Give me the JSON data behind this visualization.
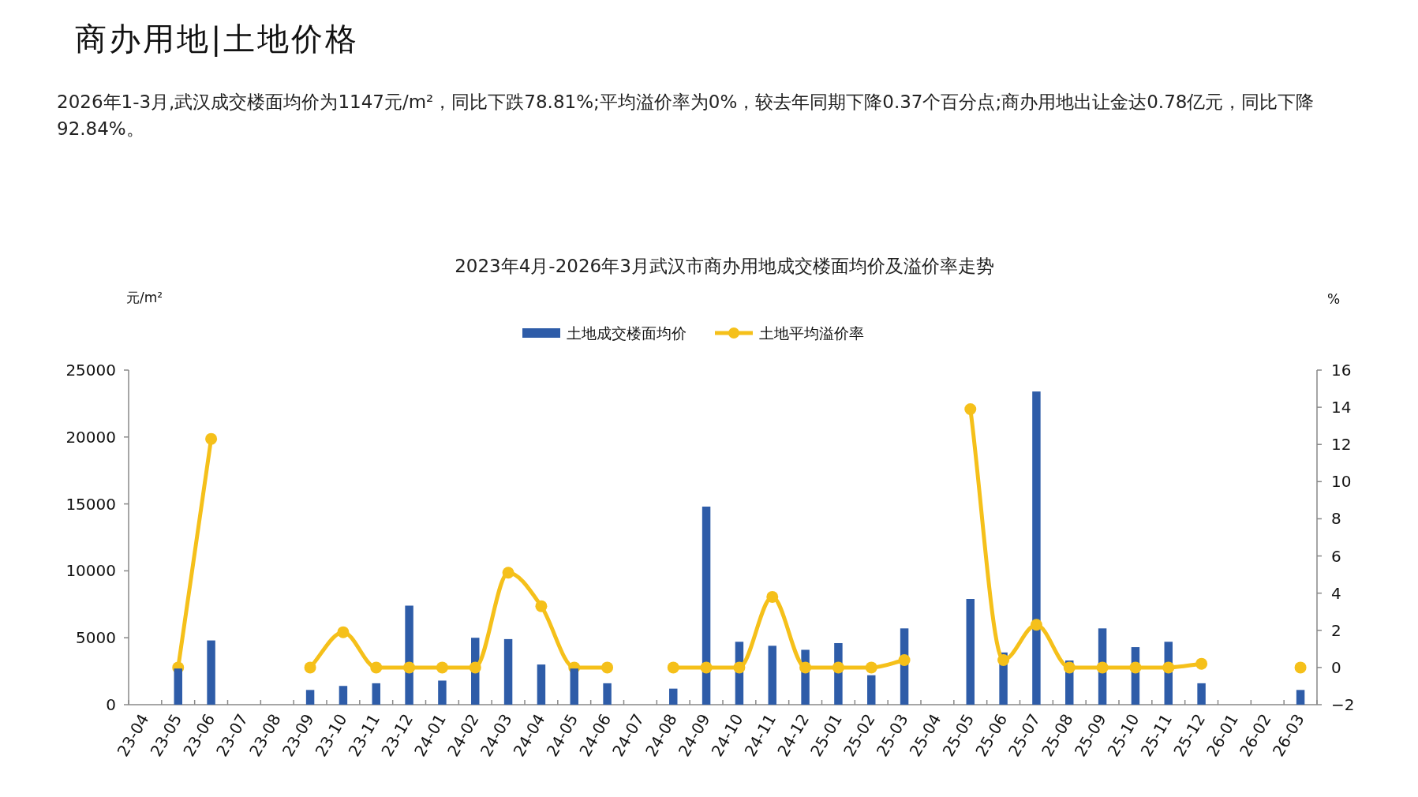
{
  "chart_data": {
    "type": "bar",
    "title": "2023年4月-2026年3月武汉市商办用地成交楼面均价及溢价率走势",
    "ylabel": "元/m²",
    "y2label": "%",
    "annotations": [
      "商办用地|土地价格",
      "2026年1-3月,武汉成交楼面均价为1147元/m²，同比下跌78.81%;平均溢价率为0%，较去年同期下降0.37个百分点;商办用地出让金达0.78亿元，同比下降92.84%。"
    ],
    "categories": [
      "23-04",
      "23-05",
      "23-06",
      "23-07",
      "23-08",
      "23-09",
      "23-10",
      "23-11",
      "23-12",
      "24-01",
      "24-02",
      "24-03",
      "24-04",
      "24-05",
      "24-06",
      "24-07",
      "24-08",
      "24-09",
      "24-10",
      "24-11",
      "24-12",
      "25-01",
      "25-02",
      "25-03",
      "25-04",
      "25-05",
      "25-06",
      "25-07",
      "25-08",
      "25-09",
      "25-10",
      "25-11",
      "25-12",
      "26-01",
      "26-02",
      "26-03"
    ],
    "series": [
      {
        "name": "土地成交楼面均价",
        "color": "#2e5ca8",
        "values": [
          null,
          2700,
          4800,
          null,
          null,
          1100,
          1400,
          1600,
          7400,
          1800,
          5000,
          4900,
          3000,
          2700,
          1600,
          null,
          1200,
          14800,
          4700,
          4400,
          4100,
          4600,
          2200,
          5700,
          null,
          7900,
          3900,
          23400,
          3300,
          5700,
          4300,
          4700,
          1600,
          null,
          null,
          1100
        ]
      },
      {
        "name": "土地平均溢价率",
        "type": "line",
        "axis": "y2",
        "color": "#f5c01a",
        "marker": "circle",
        "values": [
          null,
          0,
          12.3,
          null,
          null,
          0,
          1.9,
          0,
          0,
          0,
          0,
          5.1,
          3.3,
          0,
          0,
          null,
          0,
          0,
          0,
          3.8,
          0,
          0,
          0,
          0.4,
          null,
          13.9,
          0.4,
          2.3,
          0,
          0,
          0,
          0,
          0.2,
          null,
          null,
          0
        ]
      }
    ],
    "ylim": [
      0,
      25000
    ],
    "yticks": [
      0,
      5000,
      10000,
      15000,
      20000,
      25000
    ],
    "y2lim": [
      -2,
      16
    ],
    "y2ticks": [
      -2,
      0,
      2,
      4,
      6,
      8,
      10,
      12,
      14,
      16
    ],
    "legend": "top"
  }
}
